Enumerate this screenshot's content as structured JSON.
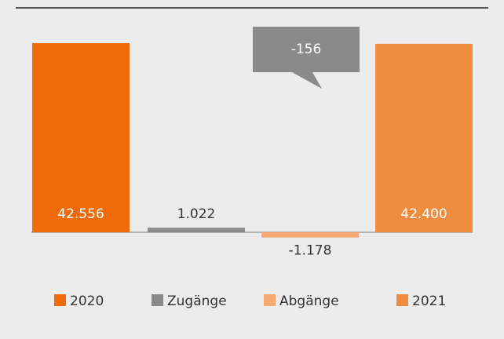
{
  "chart_data": {
    "type": "bar",
    "categories": [
      "2020",
      "Zugänge",
      "Abgänge",
      "2021"
    ],
    "values": [
      42556,
      1022,
      -1178,
      42400
    ],
    "value_labels": [
      "42.556",
      "1.022",
      "-1.178",
      "42.400"
    ],
    "colors": [
      "#ee6a0b",
      "#8a8a8a",
      "#f7a870",
      "#f08c40"
    ],
    "annotation": "-156"
  }
}
